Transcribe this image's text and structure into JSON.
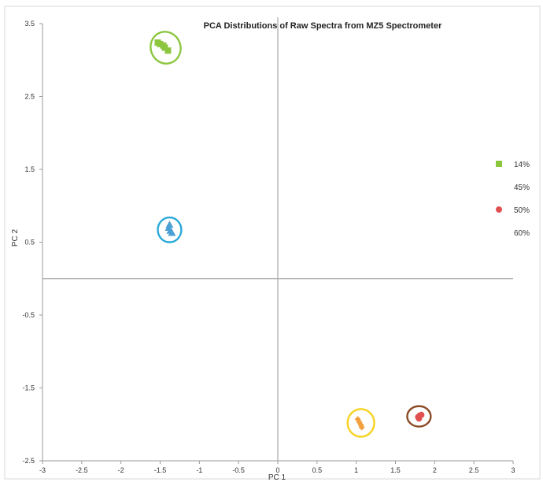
{
  "chart_data": {
    "type": "scatter",
    "title": "PCA Distributions of Raw Spectra from MZ5 Spectrometer",
    "xlabel": "PC 1",
    "ylabel": "PC 2",
    "xlim": [
      -3,
      3
    ],
    "ylim": [
      -2.5,
      3.5
    ],
    "xticks": [
      -3,
      -2.5,
      -2,
      -1.5,
      -1,
      -0.5,
      0,
      0.5,
      1,
      1.5,
      2,
      2.5,
      3
    ],
    "xtick_labels": [
      "-3",
      "-2.5",
      "-2",
      "-1.5",
      "-1",
      "-0.5",
      "0",
      "0.5",
      "1",
      "1.5",
      "2",
      "2.5",
      "3"
    ],
    "yticks": [
      3.5,
      2.5,
      1.5,
      0.5,
      -0.5,
      -1.5,
      -2.5
    ],
    "ytick_labels": [
      "3.5",
      "2.5",
      "1.5",
      "0.5",
      "-0.5",
      "-1.5",
      "-2.5"
    ],
    "grid": false,
    "legend_position": "right",
    "series": [
      {
        "name": "14%",
        "marker": "square",
        "color": "#8cc63f",
        "ellipse_color": "#8cc63f",
        "points": [
          [
            -1.53,
            3.24
          ],
          [
            -1.5,
            3.22
          ],
          [
            -1.46,
            3.2
          ],
          [
            -1.44,
            3.17
          ],
          [
            -1.4,
            3.13
          ]
        ],
        "ellipse": {
          "cx": -1.43,
          "cy": 3.17,
          "rx": 0.19,
          "ry": 0.22
        }
      },
      {
        "name": "45%",
        "marker": "triangle",
        "color": "#4a9fd4",
        "ellipse_color": "#29a9d8",
        "points": [
          [
            -1.38,
            0.74
          ],
          [
            -1.39,
            0.7
          ],
          [
            -1.37,
            0.66
          ],
          [
            -1.35,
            0.63
          ]
        ],
        "ellipse": {
          "cx": -1.38,
          "cy": 0.67,
          "rx": 0.15,
          "ry": 0.17
        }
      },
      {
        "name": "50%",
        "marker": "circle",
        "color": "#e05050",
        "ellipse_color": "#8b4a24",
        "points": [
          [
            1.79,
            -1.9
          ],
          [
            1.81,
            -1.88
          ],
          [
            1.83,
            -1.87
          ],
          [
            1.8,
            -1.92
          ]
        ],
        "ellipse": {
          "cx": 1.8,
          "cy": -1.89,
          "rx": 0.15,
          "ry": 0.14
        }
      },
      {
        "name": "60%",
        "marker": "diamond",
        "color": "#f2a03d",
        "ellipse_color": "#f7d21e",
        "points": [
          [
            1.02,
            -1.93
          ],
          [
            1.04,
            -1.97
          ],
          [
            1.06,
            -2.01
          ],
          [
            1.07,
            -2.04
          ]
        ],
        "ellipse": {
          "cx": 1.06,
          "cy": -1.98,
          "rx": 0.17,
          "ry": 0.19
        }
      }
    ]
  }
}
